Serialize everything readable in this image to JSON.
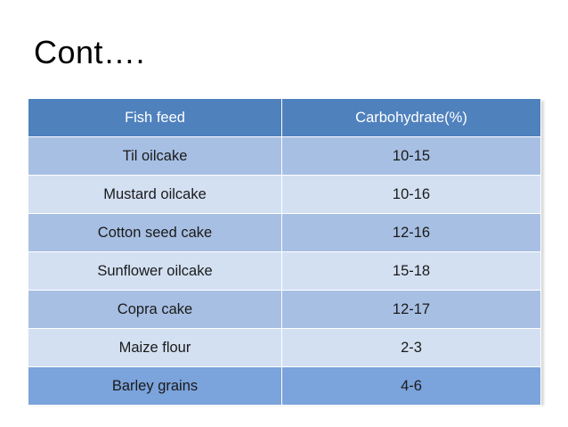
{
  "slide": {
    "title": "Cont…."
  },
  "table": {
    "headers": [
      "Fish feed",
      "Carbohydrate(%)"
    ],
    "rows": [
      [
        "Til oilcake",
        "10-15"
      ],
      [
        "Mustard oilcake",
        "10-16"
      ],
      [
        "Cotton seed cake",
        "12-16"
      ],
      [
        "Sunflower oilcake",
        "15-18"
      ],
      [
        "Copra cake",
        "12-17"
      ],
      [
        "Maize flour",
        "2-3"
      ],
      [
        "Barley grains",
        "4-6"
      ]
    ]
  },
  "colors": {
    "header_bg": "#4f81bd",
    "row_band_dark": "#a7bfe3",
    "row_band_light": "#d3e0f2"
  }
}
